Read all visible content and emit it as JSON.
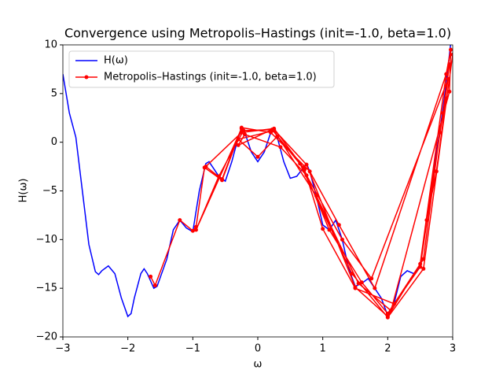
{
  "chart_data": {
    "type": "line",
    "title": "Convergence using Metropolis–Hastings (init=-1.0, beta=1.0)",
    "x_label": "ω",
    "y_label": "H(ω)",
    "xlim": [
      -3,
      3
    ],
    "ylim": [
      -20,
      10
    ],
    "xticks": [
      {
        "value": -3,
        "label": "−3"
      },
      {
        "value": -2,
        "label": "−2"
      },
      {
        "value": -1,
        "label": "−1"
      },
      0,
      1,
      2,
      3
    ],
    "yticks": [
      {
        "value": -20,
        "label": "−20"
      },
      {
        "value": -15,
        "label": "−15"
      },
      {
        "value": -10,
        "label": "−10"
      },
      {
        "value": -5,
        "label": "−5"
      },
      0,
      5,
      10
    ],
    "legend": "upper left",
    "series": [
      {
        "name": "H(ω)",
        "color": "#0000ff",
        "markers": false,
        "x": [
          -3,
          -2.9,
          -2.8,
          -2.7,
          -2.6,
          -2.5,
          -2.45,
          -2.4,
          -2.3,
          -2.2,
          -2.1,
          -2.0,
          -1.95,
          -1.9,
          -1.8,
          -1.75,
          -1.7,
          -1.6,
          -1.55,
          -1.4,
          -1.3,
          -1.2,
          -1.1,
          -1.0,
          -0.9,
          -0.8,
          -0.75,
          -0.7,
          -0.6,
          -0.5,
          -0.4,
          -0.3,
          -0.25,
          -0.2,
          -0.1,
          0,
          0.1,
          0.2,
          0.25,
          0.3,
          0.4,
          0.5,
          0.6,
          0.75,
          0.8,
          0.9,
          1.0,
          1.1,
          1.2,
          1.3,
          1.4,
          1.5,
          1.6,
          1.7,
          1.8,
          1.9,
          2.0,
          2.1,
          2.2,
          2.3,
          2.4,
          2.5,
          2.6,
          2.7,
          2.8,
          2.9,
          3.0
        ],
        "values": [
          7,
          3,
          0.5,
          -5,
          -10.5,
          -13.3,
          -13.6,
          -13.2,
          -12.7,
          -13.5,
          -16,
          -17.9,
          -17.6,
          -16,
          -13.5,
          -13,
          -13.5,
          -15,
          -14.8,
          -12,
          -9,
          -8,
          -8.8,
          -9.2,
          -5,
          -2.2,
          -2,
          -2.5,
          -3.5,
          -4,
          -2,
          0.5,
          1.3,
          1,
          -1,
          -2,
          -1,
          1,
          1.3,
          0.5,
          -2,
          -3.7,
          -3.5,
          -2.2,
          -3,
          -5.5,
          -8.5,
          -9,
          -8,
          -10,
          -13,
          -14.8,
          -14.5,
          -14,
          -15,
          -16,
          -17.8,
          -16.5,
          -13.8,
          -13.2,
          -13.5,
          -12.7,
          -8,
          -3,
          1,
          6,
          12
        ]
      },
      {
        "name": "Metropolis–Hastings (init=-1.0, beta=1.0)",
        "color": "#ff0000",
        "markers": true,
        "x": [
          -1.65,
          -1.58,
          -1.2,
          -1.0,
          -0.95,
          -0.82,
          -0.55,
          -0.25,
          -0.95,
          -0.6,
          -0.22,
          0.25,
          0.75,
          1.5,
          2.0,
          2.5,
          2.9,
          2.97,
          2.95,
          2.05,
          1.55,
          0.9,
          0.25,
          -0.3,
          0.0,
          0.3,
          0.72,
          1.0,
          1.5,
          2.1,
          2.5,
          2.85,
          2.95,
          1.8,
          1.25,
          0.8,
          0.2,
          -0.25,
          -0.55,
          -0.8,
          -0.25,
          0.25,
          0.7,
          1.1,
          1.6,
          2.0,
          2.55,
          2.8,
          2.9,
          2.75,
          2.6,
          2.93,
          1.75,
          1.3,
          0.75,
          0.35,
          -0.2,
          -0.3,
          0.22,
          0.65,
          1.45,
          2.0,
          2.55,
          3.0
        ],
        "values": [
          -13.8,
          -14.7,
          -8,
          -9.1,
          -8.7,
          -2.6,
          -3.9,
          1.4,
          -9,
          -3.5,
          1.2,
          1.3,
          -2.3,
          -14.9,
          -17.9,
          -12.5,
          7,
          9.5,
          5.2,
          -17.3,
          -14.5,
          -5.5,
          1.2,
          0.3,
          -1.5,
          0.6,
          -2.8,
          -8.9,
          -15,
          -16.6,
          -12.8,
          3,
          8,
          -15,
          -8.5,
          -3,
          1,
          1.5,
          -3.8,
          -2.5,
          1,
          1.4,
          -2.6,
          -9,
          -14.4,
          -17.6,
          -12,
          1,
          4.5,
          -3,
          -8,
          6.5,
          -14,
          -10,
          -3.4,
          -0.5,
          0.8,
          -0.3,
          1.3,
          -2.2,
          -13.5,
          -18,
          -13,
          9
        ]
      }
    ]
  }
}
